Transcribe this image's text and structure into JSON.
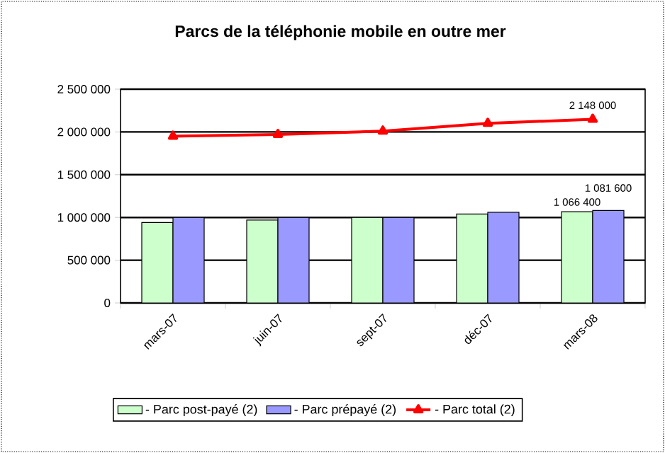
{
  "chart_data": {
    "type": "bar",
    "title": "Parcs de la téléphonie mobile en outre mer",
    "categories": [
      "mars-07",
      "juin-07",
      "sept-07",
      "déc-07",
      "mars-08"
    ],
    "series": [
      {
        "name": "- Parc post-payé (2)",
        "color": "#ccffcc",
        "values": [
          940000,
          970000,
          1000000,
          1040000,
          1066400
        ],
        "value_labels": [
          null,
          null,
          null,
          null,
          "1 066 400"
        ]
      },
      {
        "name": "- Parc prépayé (2)",
        "color": "#9999ff",
        "values": [
          1000000,
          1000000,
          1000000,
          1060000,
          1081600
        ],
        "value_labels": [
          null,
          null,
          null,
          null,
          "1 081 600"
        ]
      },
      {
        "name": "- Parc total (2)",
        "type": "line",
        "color": "#ff0000",
        "marker": "triangle",
        "values": [
          1950000,
          1970000,
          2010000,
          2100000,
          2148000
        ],
        "value_labels": [
          null,
          null,
          null,
          null,
          "2 148 000"
        ]
      }
    ],
    "ylim": [
      0,
      2500000
    ],
    "yticks": [
      {
        "value": 0,
        "label": "0"
      },
      {
        "value": 500000,
        "label": "500 000"
      },
      {
        "value": 1000000,
        "label": "1 000 000"
      },
      {
        "value": 1500000,
        "label": "1 500 000"
      },
      {
        "value": 2000000,
        "label": "2 000 000"
      },
      {
        "value": 2500000,
        "label": "2 500 000"
      }
    ],
    "grid": "y",
    "legend": "bottom"
  }
}
